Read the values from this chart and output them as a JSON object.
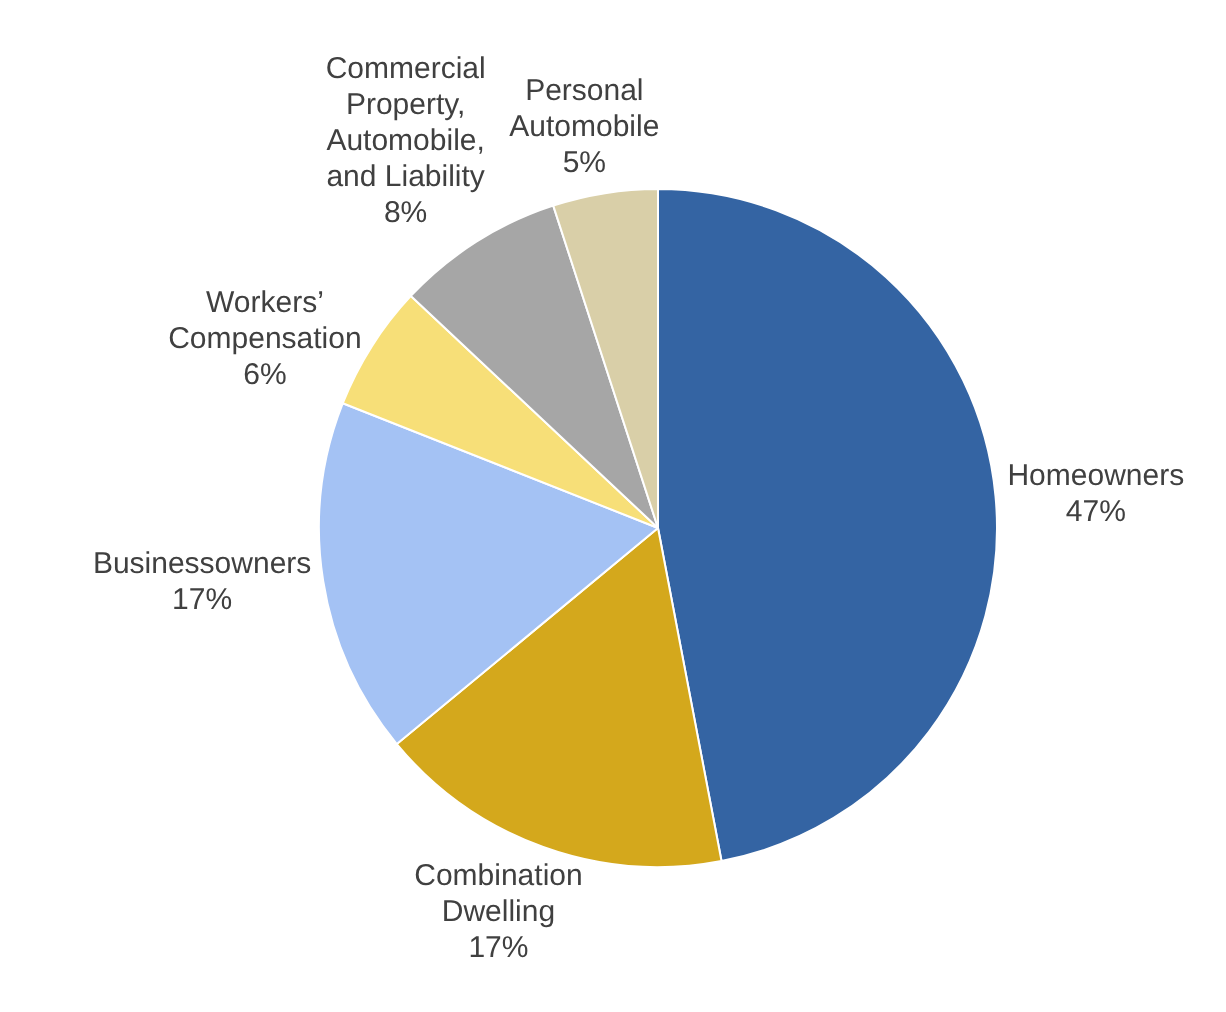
{
  "chart_data": {
    "type": "pie",
    "categories": [
      "Homeowners",
      "Combination Dwelling",
      "Businessowners",
      "Workers’ Compensation",
      "Commercial Property, Automobile, and Liability",
      "Personal Automobile"
    ],
    "values": [
      47,
      17,
      17,
      6,
      8,
      5
    ],
    "colors": [
      "#3464a3",
      "#d4a81c",
      "#a4c2f4",
      "#f7df78",
      "#a6a6a6",
      "#d9cfa8"
    ],
    "value_labels": [
      "47%",
      "17%",
      "17%",
      "6%",
      "8%",
      "5%"
    ],
    "legend": false
  }
}
